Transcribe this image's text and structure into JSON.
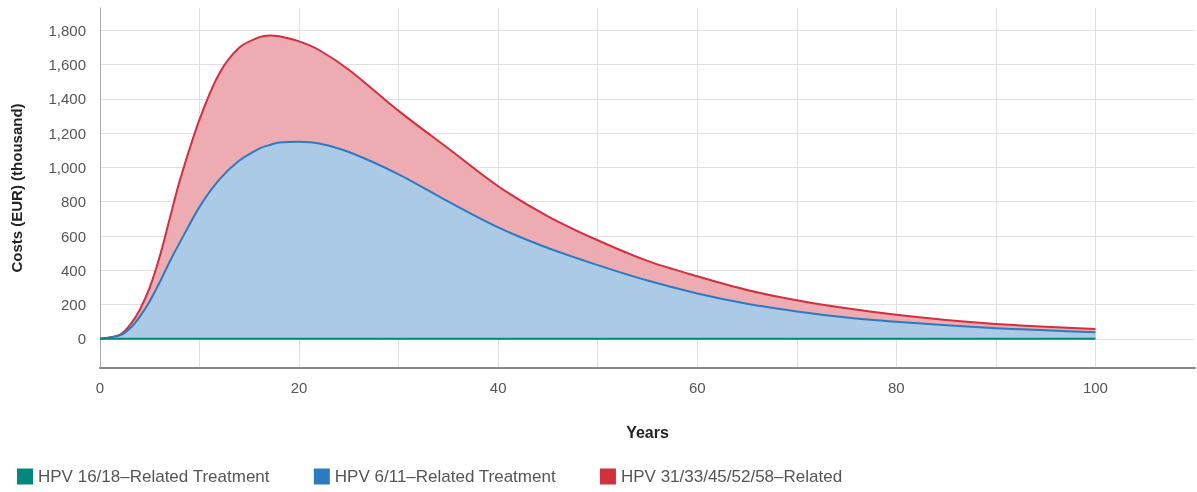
{
  "chart_data": {
    "type": "area",
    "stacked": true,
    "xlabel": "Years",
    "ylabel": "Costs (EUR) (thousand)",
    "x": [
      0,
      2,
      3,
      4,
      5,
      6,
      7,
      8,
      10,
      12,
      14,
      16,
      17,
      18,
      20,
      22,
      25,
      30,
      35,
      40,
      45,
      50,
      55,
      60,
      65,
      70,
      75,
      80,
      85,
      90,
      95,
      100
    ],
    "series": [
      {
        "name": "HPV 16/18–Related Treatment",
        "type": "line",
        "color": "#00897b",
        "values": [
          0,
          0,
          0,
          0,
          0,
          0,
          0,
          0,
          0,
          0,
          0,
          0,
          0,
          0,
          0,
          0,
          0,
          0,
          0,
          0,
          0,
          0,
          0,
          0,
          0,
          0,
          0,
          0,
          0,
          0,
          0,
          0
        ]
      },
      {
        "name": "HPV 6/11–Related Treatment",
        "color": "#2a7bc1",
        "values": [
          0,
          20,
          60,
          130,
          220,
          330,
          450,
          560,
          770,
          930,
          1040,
          1110,
          1130,
          1145,
          1150,
          1140,
          1090,
          960,
          800,
          650,
          530,
          430,
          340,
          265,
          205,
          160,
          125,
          100,
          80,
          62,
          50,
          38
        ]
      },
      {
        "name": "HPV 31/33/45/52/58–Related",
        "color": "#d32f3f",
        "values": [
          0,
          5,
          20,
          40,
          80,
          150,
          250,
          360,
          510,
          620,
          660,
          650,
          640,
          620,
          585,
          545,
          480,
          370,
          310,
          240,
          185,
          145,
          115,
          100,
          80,
          65,
          53,
          40,
          30,
          25,
          20,
          20
        ]
      }
    ],
    "xlim": [
      0,
      110
    ],
    "xticks": [
      0,
      {
        "value": 10,
        "label": null
      },
      20,
      {
        "value": 30,
        "label": null
      },
      40,
      {
        "value": 50,
        "label": null
      },
      60,
      {
        "value": 70,
        "label": null
      },
      80,
      {
        "value": 90,
        "label": null
      },
      100
    ],
    "ylim": [
      -170,
      1930
    ],
    "yticks": [
      0,
      {
        "value": 200,
        "label": "200"
      },
      {
        "value": 400,
        "label": "400"
      },
      {
        "value": 600,
        "label": "600"
      },
      {
        "value": 800,
        "label": "800"
      },
      {
        "value": 1000,
        "label": "1,000"
      },
      {
        "value": 1200,
        "label": "1,200"
      },
      {
        "value": 1400,
        "label": "1,400"
      },
      {
        "value": 1600,
        "label": "1,600"
      },
      {
        "value": 1800,
        "label": "1,800"
      }
    ],
    "grid": true,
    "legend": "bottom left",
    "marker": "none",
    "line_style": "solid"
  }
}
